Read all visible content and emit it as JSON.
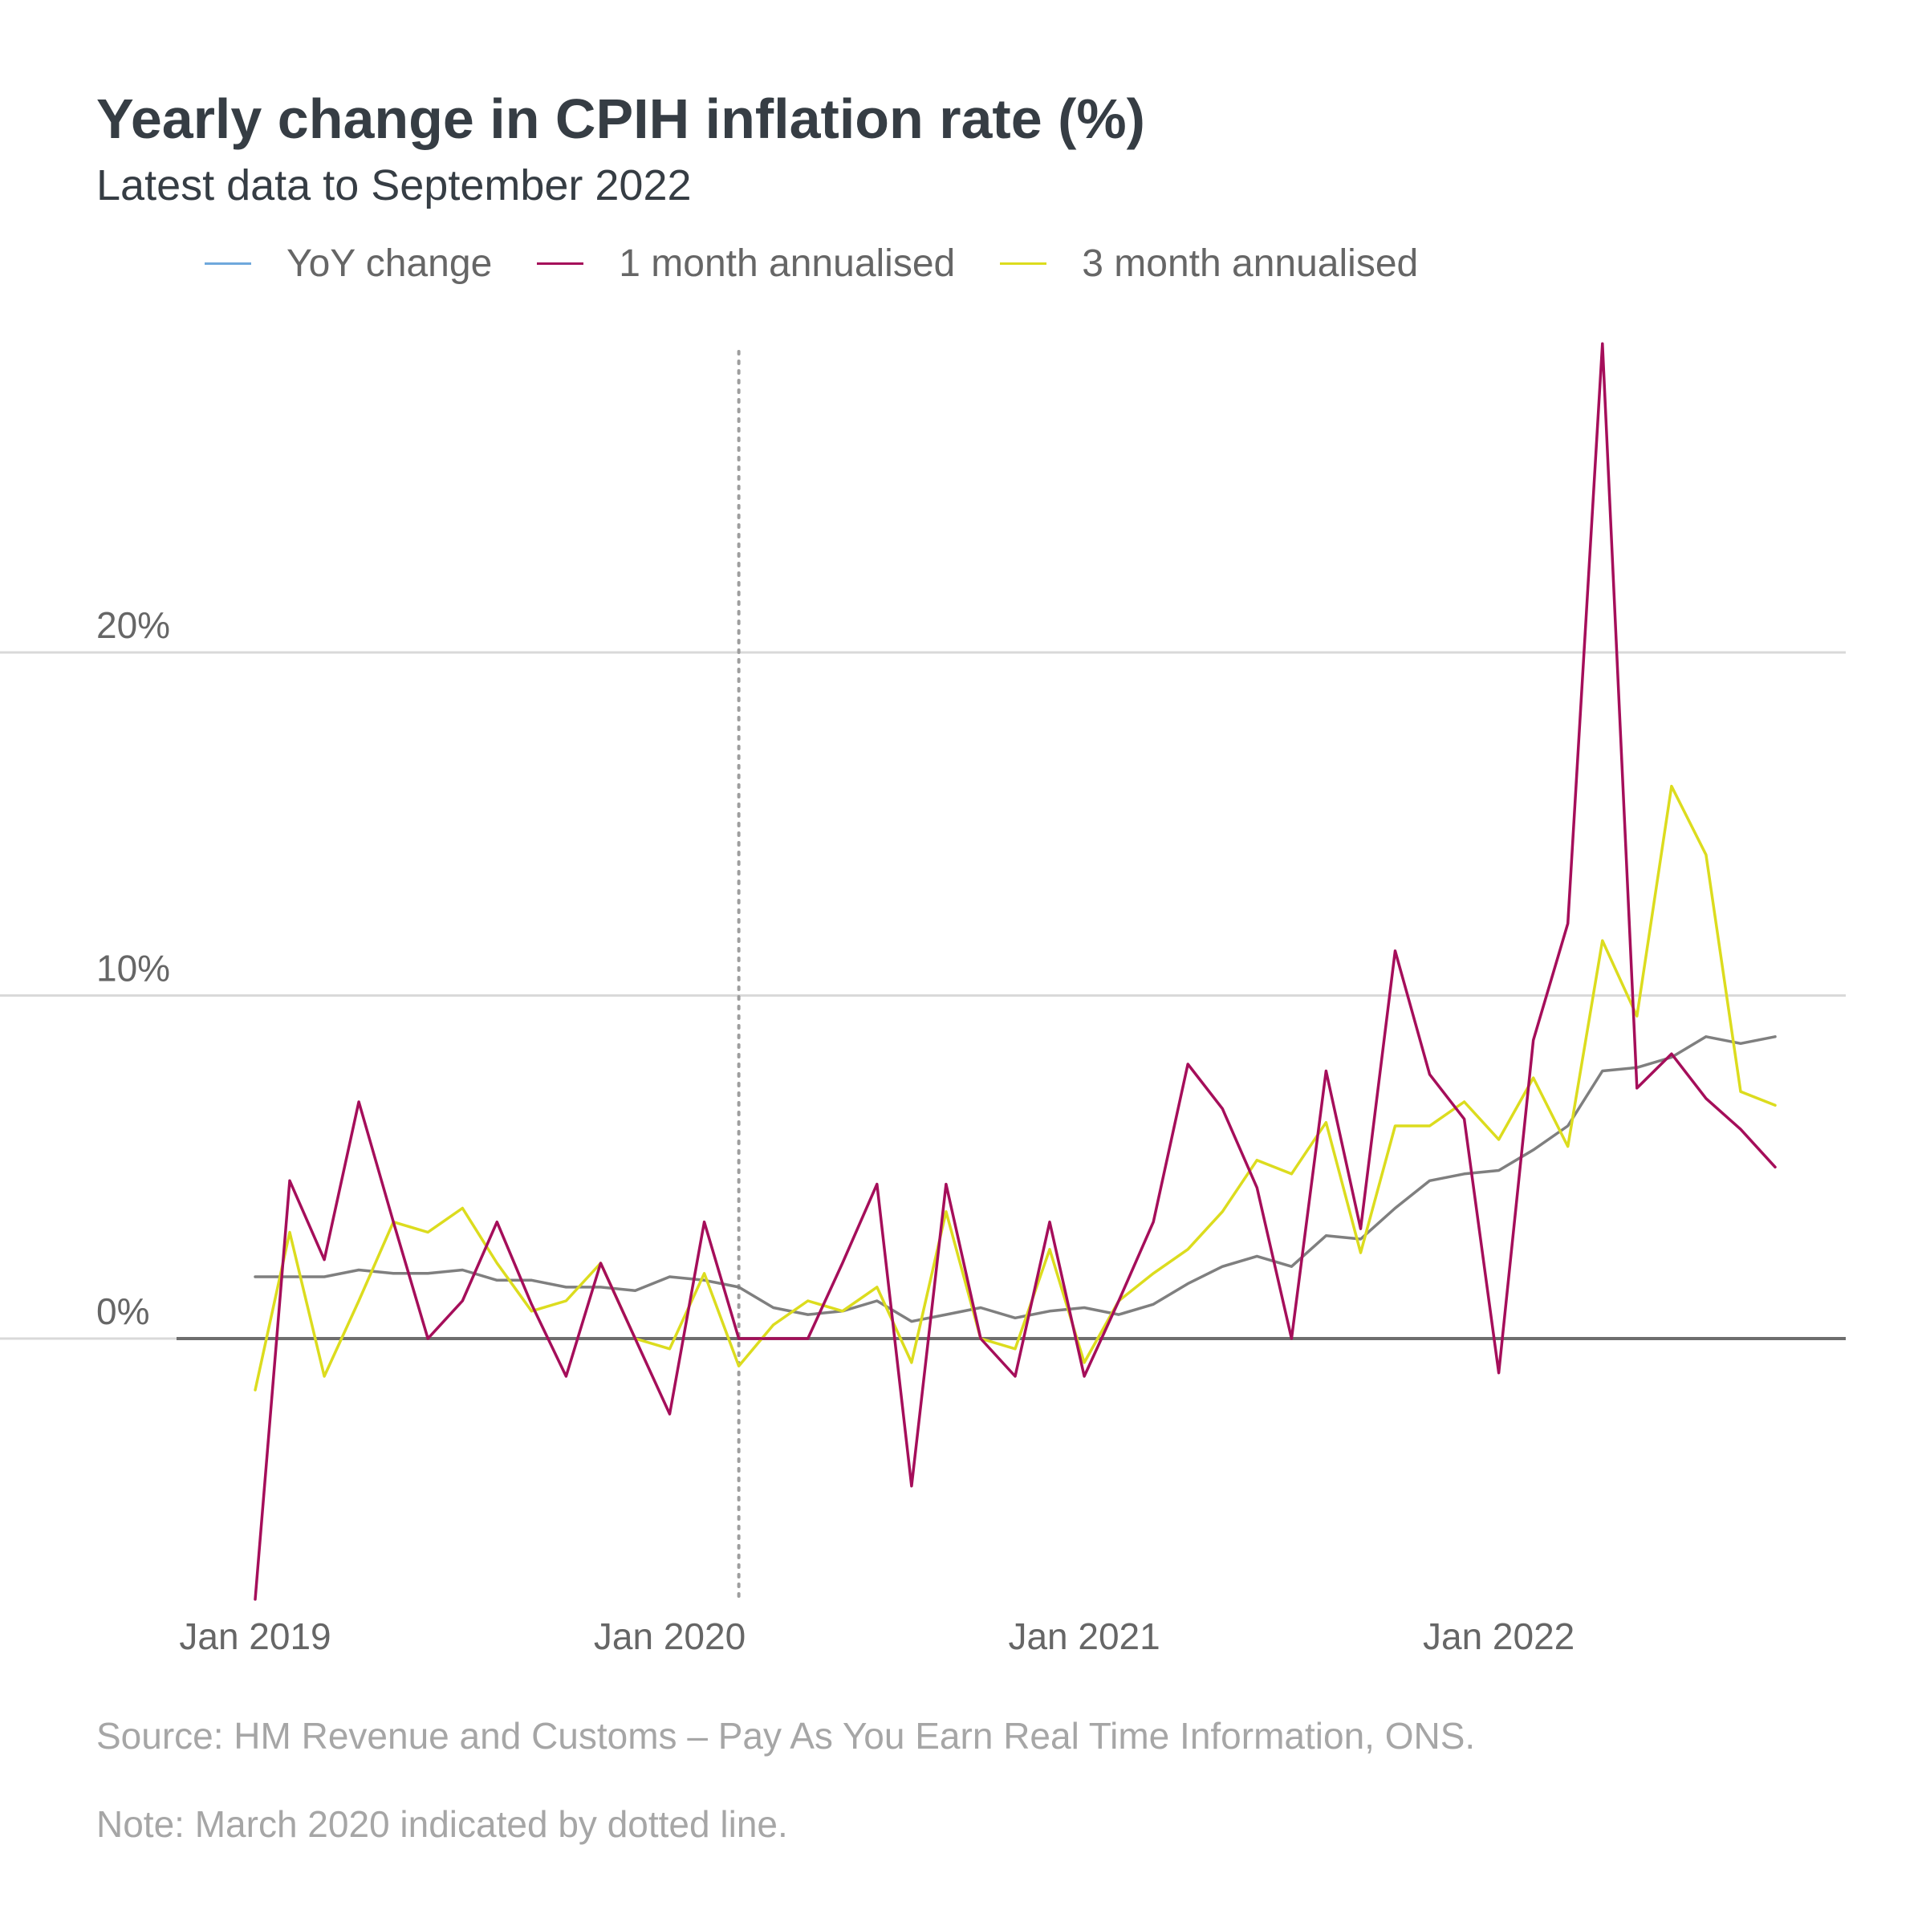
{
  "chart_data": {
    "type": "line",
    "title": "Yearly change in CPIH inflation rate (%)",
    "subtitle": "Latest data to September 2022",
    "x": [
      "2019-01",
      "2019-02",
      "2019-03",
      "2019-04",
      "2019-05",
      "2019-06",
      "2019-07",
      "2019-08",
      "2019-09",
      "2019-10",
      "2019-11",
      "2019-12",
      "2020-01",
      "2020-02",
      "2020-03",
      "2020-04",
      "2020-05",
      "2020-06",
      "2020-07",
      "2020-08",
      "2020-09",
      "2020-10",
      "2020-11",
      "2020-12",
      "2021-01",
      "2021-02",
      "2021-03",
      "2021-04",
      "2021-05",
      "2021-06",
      "2021-07",
      "2021-08",
      "2021-09",
      "2021-10",
      "2021-11",
      "2021-12",
      "2022-01",
      "2022-02",
      "2022-03",
      "2022-04",
      "2022-05",
      "2022-06",
      "2022-07",
      "2022-08",
      "2022-09"
    ],
    "x_tick_labels": [
      {
        "at": "2019-01",
        "label": "Jan 2019"
      },
      {
        "at": "2020-01",
        "label": "Jan 2020"
      },
      {
        "at": "2021-01",
        "label": "Jan 2021"
      },
      {
        "at": "2022-01",
        "label": "Jan 2022"
      }
    ],
    "y_ticks": [
      {
        "value": 0,
        "label": "0%"
      },
      {
        "value": 10,
        "label": "10%"
      },
      {
        "value": 20,
        "label": "20%"
      }
    ],
    "ylim": [
      -7.6,
      29
    ],
    "grid": true,
    "legend_position": "top",
    "reference_line": {
      "at": "2020-03",
      "style": "dotted"
    },
    "series": [
      {
        "name": "YoY change",
        "color": "#7f7f7f",
        "legend_color": "#6fa8dc",
        "values": [
          1.8,
          1.8,
          1.8,
          2.0,
          1.9,
          1.9,
          2.0,
          1.7,
          1.7,
          1.5,
          1.5,
          1.4,
          1.8,
          1.7,
          1.5,
          0.9,
          0.7,
          0.8,
          1.1,
          0.5,
          0.7,
          0.9,
          0.6,
          0.8,
          0.9,
          0.7,
          1.0,
          1.6,
          2.1,
          2.4,
          2.1,
          3.0,
          2.9,
          3.8,
          4.6,
          4.8,
          4.9,
          5.5,
          6.2,
          7.8,
          7.9,
          8.2,
          8.8,
          8.6,
          8.8
        ]
      },
      {
        "name": "1 month annualised",
        "color": "#a50e5a",
        "values": [
          -7.6,
          4.6,
          2.3,
          6.9,
          3.4,
          0.0,
          1.1,
          3.4,
          1.0,
          -1.1,
          2.2,
          0.0,
          -2.2,
          3.4,
          0.0,
          0.0,
          0.0,
          2.2,
          4.5,
          -4.3,
          4.5,
          0.0,
          -1.1,
          3.4,
          -1.1,
          1.1,
          3.4,
          8.0,
          6.7,
          4.4,
          0.0,
          7.8,
          3.2,
          11.3,
          7.7,
          6.4,
          -1.0,
          8.7,
          12.1,
          29.0,
          7.3,
          8.3,
          7.0,
          6.1,
          5.0
        ]
      },
      {
        "name": "3 month annualised",
        "color": "#dcdc1e",
        "values": [
          -1.5,
          3.1,
          -1.1,
          1.1,
          3.4,
          3.1,
          3.8,
          2.2,
          0.8,
          1.1,
          2.2,
          0.0,
          -0.3,
          1.9,
          -0.8,
          0.4,
          1.1,
          0.8,
          1.5,
          -0.7,
          3.7,
          0.0,
          -0.3,
          2.6,
          -0.7,
          1.1,
          1.9,
          2.6,
          3.7,
          5.2,
          4.8,
          6.3,
          2.5,
          6.2,
          6.2,
          6.9,
          5.8,
          7.6,
          5.6,
          11.6,
          9.4,
          16.1,
          14.1,
          7.2,
          6.8
        ]
      }
    ],
    "ylabel": "",
    "xlabel": ""
  },
  "footnotes": {
    "source": "Source: HM Revenue and Customs – Pay As You Earn Real Time Information, ONS.",
    "note": "Note: March 2020 indicated by dotted line."
  }
}
